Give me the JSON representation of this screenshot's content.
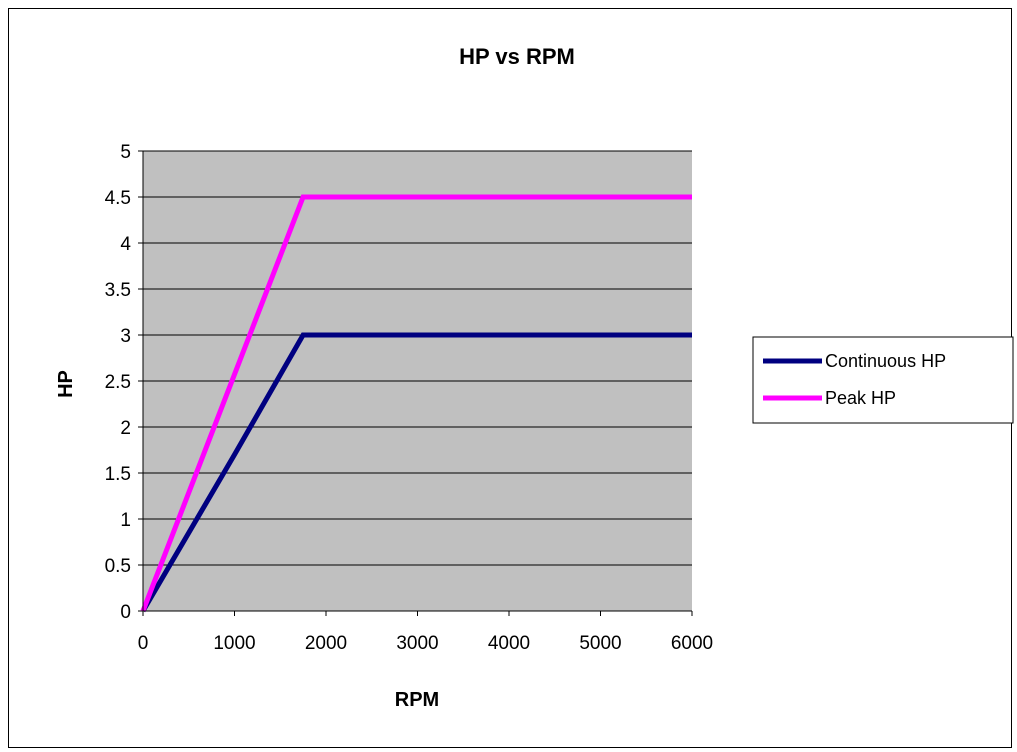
{
  "chart_data": {
    "type": "line",
    "title": "HP vs RPM",
    "xlabel": "RPM",
    "ylabel": "HP",
    "xlim": [
      0,
      6000
    ],
    "ylim": [
      0,
      5
    ],
    "xticks": [
      "0",
      "1000",
      "2000",
      "3000",
      "4000",
      "5000",
      "6000"
    ],
    "yticks": [
      "0",
      "0.5",
      "1",
      "1.5",
      "2",
      "2.5",
      "3",
      "3.5",
      "4",
      "4.5",
      "5"
    ],
    "grid": "horizontal",
    "legend_position": "right",
    "plot_background": "#c0c0c0",
    "series": [
      {
        "name": "Continuous HP",
        "color": "#000080",
        "x": [
          0,
          1000,
          1750,
          6000
        ],
        "y": [
          0,
          1.7,
          3,
          3
        ]
      },
      {
        "name": "Peak HP",
        "color": "#ff00ff",
        "x": [
          0,
          1750,
          6000
        ],
        "y": [
          0,
          4.5,
          4.5
        ]
      }
    ]
  }
}
